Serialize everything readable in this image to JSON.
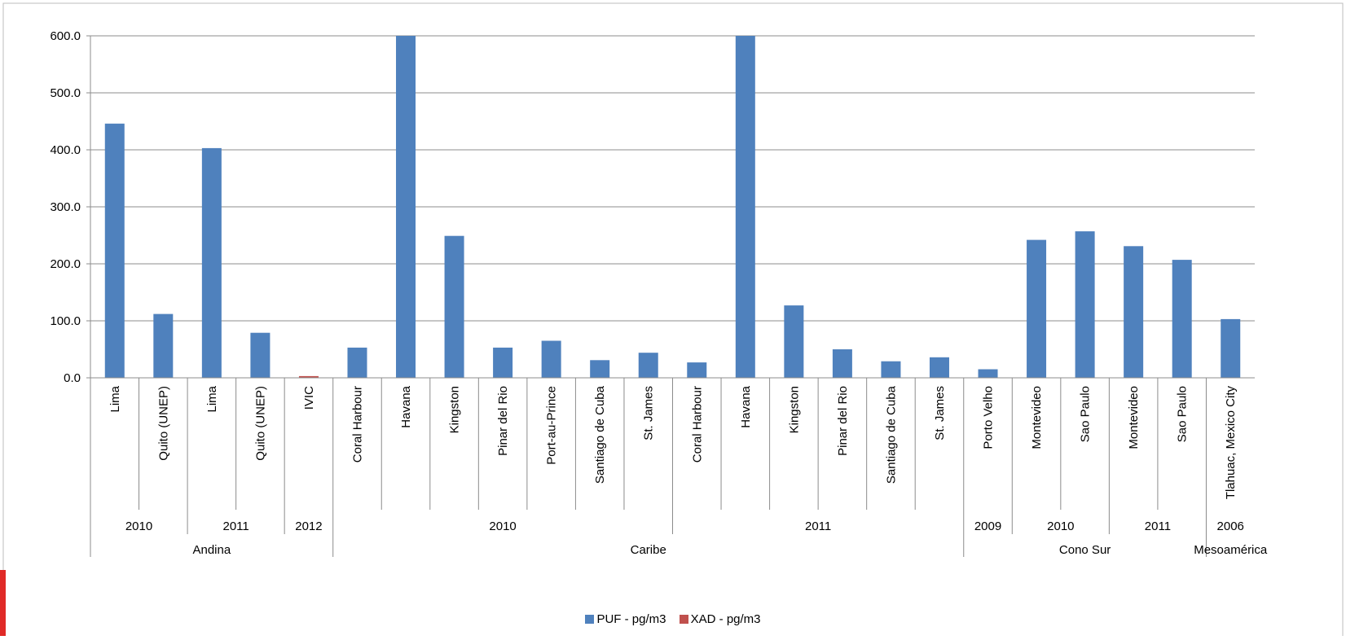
{
  "chart_data": {
    "type": "bar",
    "title": "",
    "xlabel": "",
    "ylabel": "",
    "ylim": [
      0,
      600
    ],
    "yticks": [
      "0.0",
      "100.0",
      "200.0",
      "300.0",
      "400.0",
      "500.0",
      "600.0"
    ],
    "grid": true,
    "legend_position": "bottom",
    "categories": [
      "Lima",
      "Quito (UNEP)",
      "Lima",
      "Quito (UNEP)",
      "IVIC",
      "Coral Harbour",
      "Havana",
      "Kingston",
      "Pinar del Rio",
      "Port-au-Prince",
      "Santiago de Cuba",
      "St. James",
      "Coral Harbour",
      "Havana",
      "Kingston",
      "Pinar del Rio",
      "Santiago de Cuba",
      "St. James",
      "Porto Velho",
      "Montevideo",
      "Sao Paulo",
      "Montevideo",
      "Sao Paulo",
      "Tlahuac, Mexico City"
    ],
    "year_groups": [
      {
        "label": "2010",
        "count": 2
      },
      {
        "label": "2011",
        "count": 2
      },
      {
        "label": "2012",
        "count": 1
      },
      {
        "label": "2010",
        "count": 7
      },
      {
        "label": "2011",
        "count": 6
      },
      {
        "label": "2009",
        "count": 1
      },
      {
        "label": "2010",
        "count": 2
      },
      {
        "label": "2011",
        "count": 2
      },
      {
        "label": "2006",
        "count": 1
      }
    ],
    "region_groups": [
      {
        "label": "Andina",
        "count": 5
      },
      {
        "label": "Caribe",
        "count": 13
      },
      {
        "label": "Cono Sur",
        "count": 5
      },
      {
        "label": "Mesoamérica",
        "count": 1
      }
    ],
    "series": [
      {
        "name": "PUF - pg/m3",
        "color": "#4f81bd",
        "values": [
          446,
          112,
          403,
          79,
          0,
          53,
          600,
          249,
          53,
          65,
          31,
          44,
          27,
          600,
          127,
          50,
          29,
          36,
          15,
          242,
          257,
          231,
          207,
          103
        ]
      },
      {
        "name": "XAD - pg/m3",
        "color": "#c0504d",
        "values": [
          0,
          0,
          0,
          0,
          3,
          0,
          0,
          0,
          0,
          0,
          0,
          0,
          0,
          0,
          0,
          0,
          0,
          0,
          0,
          0,
          0,
          0,
          0,
          0
        ]
      }
    ]
  }
}
